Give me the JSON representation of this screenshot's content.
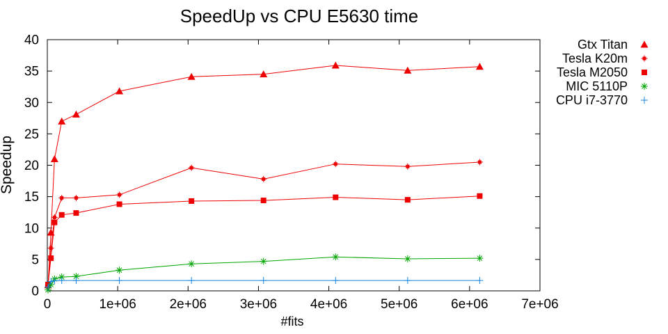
{
  "chart_data": {
    "type": "line",
    "title": "SpeedUp vs CPU E5630 time",
    "xlabel": "#fits",
    "ylabel": "Speedup",
    "xlim": [
      0,
      7000000
    ],
    "ylim": [
      0,
      40
    ],
    "grid": false,
    "legend_position": "outside-top-right",
    "x_ticks": [
      {
        "v": 0,
        "label": "0"
      },
      {
        "v": 1000000,
        "label": "1e+06"
      },
      {
        "v": 2000000,
        "label": "2e+06"
      },
      {
        "v": 3000000,
        "label": "3e+06"
      },
      {
        "v": 4000000,
        "label": "4e+06"
      },
      {
        "v": 5000000,
        "label": "5e+06"
      },
      {
        "v": 6000000,
        "label": "6e+06"
      },
      {
        "v": 7000000,
        "label": "7e+06"
      }
    ],
    "y_ticks": [
      {
        "v": 0,
        "label": "0"
      },
      {
        "v": 5,
        "label": "5"
      },
      {
        "v": 10,
        "label": "10"
      },
      {
        "v": 15,
        "label": "15"
      },
      {
        "v": 20,
        "label": "20"
      },
      {
        "v": 25,
        "label": "25"
      },
      {
        "v": 30,
        "label": "30"
      },
      {
        "v": 35,
        "label": "35"
      },
      {
        "v": 40,
        "label": "40"
      }
    ],
    "x": [
      10240,
      51200,
      102400,
      204800,
      409600,
      1024000,
      2048000,
      3072000,
      4096000,
      5120000,
      6144000
    ],
    "series": [
      {
        "name": "Gtx Titan",
        "color": "#ee0000",
        "marker": "triangle-filled",
        "values": [
          0.9,
          9.3,
          21.0,
          27.0,
          28.1,
          31.8,
          34.1,
          34.5,
          35.9,
          35.1,
          35.7
        ]
      },
      {
        "name": "Tesla K20m",
        "color": "#ee0000",
        "marker": "square-filled-small",
        "values": [
          0.9,
          6.8,
          11.7,
          14.8,
          14.8,
          15.3,
          19.6,
          17.8,
          20.2,
          19.8,
          20.5
        ]
      },
      {
        "name": "Tesla M2050",
        "color": "#ee0000",
        "marker": "square-filled",
        "values": [
          1.0,
          5.2,
          10.9,
          12.1,
          12.4,
          13.8,
          14.3,
          14.4,
          14.9,
          14.5,
          15.1
        ]
      },
      {
        "name": "MIC 5110P",
        "color": "#00a500",
        "marker": "asterisk",
        "values": [
          0.15,
          1.0,
          1.9,
          2.2,
          2.3,
          3.3,
          4.3,
          4.7,
          5.4,
          5.1,
          5.2
        ]
      },
      {
        "name": "CPU i7-3770",
        "color": "#1282dc",
        "marker": "plus",
        "values": [
          0.6,
          1.5,
          1.6,
          1.65,
          1.65,
          1.65,
          1.65,
          1.65,
          1.65,
          1.65,
          1.65
        ]
      }
    ]
  }
}
